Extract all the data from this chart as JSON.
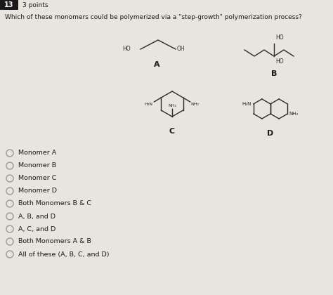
{
  "question_number": "13",
  "points": "3 points",
  "question_text": "Which of these monomers could be polymerized via a \"step-growth\" polymerization process?",
  "choices": [
    "Monomer A",
    "Monomer B",
    "Monomer C",
    "Monomer D",
    "Both Monomers B & C",
    "A, B, and D",
    "A, C, and D",
    "Both Monomers A & B",
    "All of these (A, B, C, and D)"
  ],
  "bg_color": "#e8e4de",
  "header_bg": "#2e2e2e",
  "header_num_bg": "#1a1a1a",
  "text_color": "#1a1a1a",
  "molecule_color": "#2a2a2a",
  "label_color": "#1a1a1a",
  "circle_color": "#999999"
}
